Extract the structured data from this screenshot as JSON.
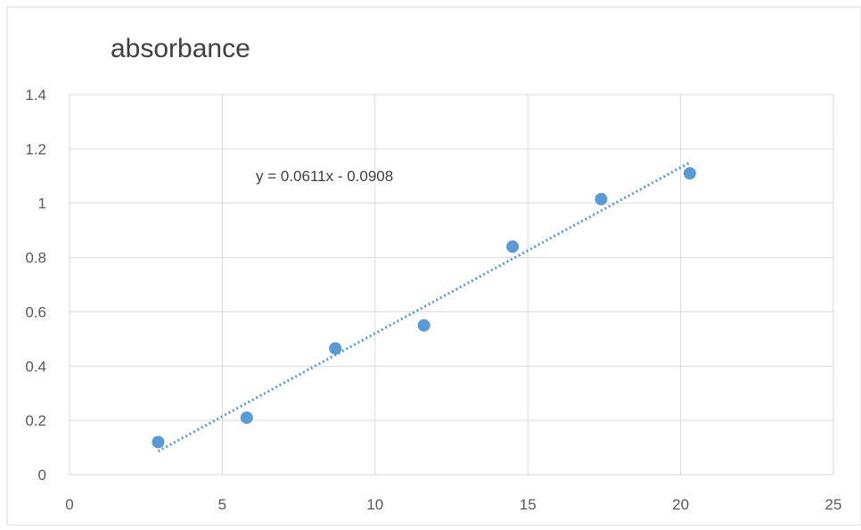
{
  "chart_data": {
    "type": "scatter",
    "title": "absorbance",
    "xlabel": "",
    "ylabel": "",
    "xlim": [
      0,
      25
    ],
    "ylim": [
      0,
      1.4
    ],
    "x_ticks": [
      0,
      5,
      10,
      15,
      20,
      25
    ],
    "y_ticks": [
      0,
      0.2,
      0.4,
      0.6,
      0.8,
      1,
      1.2,
      1.4
    ],
    "x_tick_labels": [
      "0",
      "5",
      "10",
      "15",
      "20",
      "25"
    ],
    "y_tick_labels": [
      "0",
      "0.2",
      "0.4",
      "0.6",
      "0.8",
      "1",
      "1.2",
      "1.4"
    ],
    "grid": true,
    "legend": "none",
    "series": [
      {
        "x": [
          2.9,
          5.8,
          8.7,
          11.6,
          14.5,
          17.4,
          20.3
        ],
        "y": [
          0.12,
          0.21,
          0.465,
          0.55,
          0.84,
          1.015,
          1.11
        ],
        "color": "#5B9BD5"
      }
    ],
    "trendline": {
      "type": "linear",
      "slope": 0.0611,
      "intercept": -0.0908,
      "x_range": [
        2.9,
        20.3
      ],
      "style": "dotted",
      "color": "#5B9BD5",
      "equation_label": "y = 0.0611x - 0.0908"
    }
  },
  "colors": {
    "gridline": "#D9D9D9",
    "axis_text": "#595959",
    "title_text": "#404040",
    "border": "#D9D9D9"
  }
}
